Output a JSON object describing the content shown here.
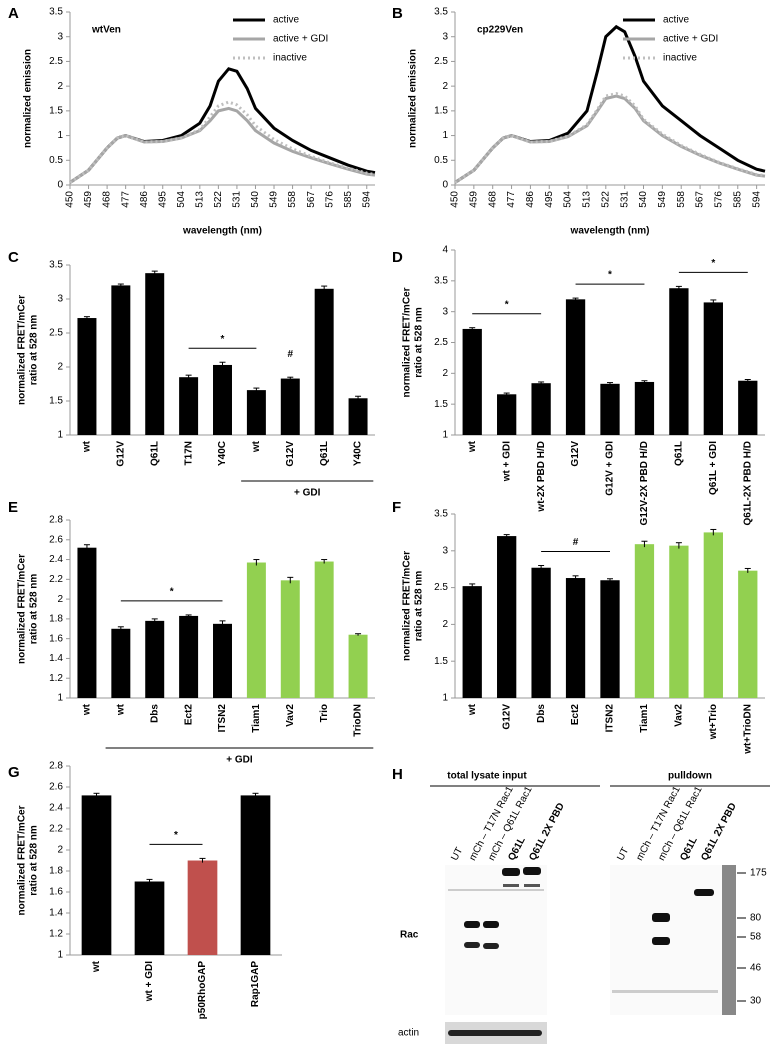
{
  "chart_data": [
    {
      "type": "line",
      "label": "A",
      "title": "wtVen",
      "xlabel": "wavelength (nm)",
      "ylabel": "normalized emission",
      "legend": "upper right",
      "x": [
        450,
        459,
        468,
        473,
        477,
        486,
        495,
        504,
        513,
        518,
        522,
        527,
        531,
        536,
        540,
        549,
        558,
        567,
        576,
        585,
        594,
        598
      ],
      "xlim": [
        450,
        598
      ],
      "xticks": [
        450,
        459,
        468,
        477,
        486,
        495,
        504,
        513,
        522,
        531,
        540,
        549,
        558,
        567,
        576,
        585,
        594
      ],
      "ylim": [
        0,
        3.5
      ],
      "yticks": [
        0,
        0.5,
        1,
        1.5,
        2,
        2.5,
        3,
        3.5
      ],
      "series": [
        {
          "name": "active",
          "color": "#000000",
          "style": "solid",
          "values": [
            0.05,
            0.3,
            0.75,
            0.95,
            1.0,
            0.88,
            0.9,
            1.0,
            1.25,
            1.6,
            2.1,
            2.35,
            2.3,
            1.95,
            1.55,
            1.15,
            0.9,
            0.7,
            0.55,
            0.4,
            0.28,
            0.25
          ]
        },
        {
          "name": "active + GDI",
          "color": "#a6a6a6",
          "style": "solid",
          "values": [
            0.05,
            0.3,
            0.75,
            0.95,
            1.0,
            0.87,
            0.88,
            0.95,
            1.1,
            1.3,
            1.5,
            1.55,
            1.5,
            1.3,
            1.1,
            0.85,
            0.68,
            0.55,
            0.43,
            0.32,
            0.22,
            0.2
          ]
        },
        {
          "name": "inactive",
          "color": "#bfbfbf",
          "style": "dotted",
          "values": [
            0.05,
            0.3,
            0.75,
            0.95,
            1.0,
            0.87,
            0.88,
            0.95,
            1.12,
            1.38,
            1.6,
            1.68,
            1.62,
            1.42,
            1.2,
            0.92,
            0.73,
            0.58,
            0.45,
            0.34,
            0.24,
            0.21
          ]
        }
      ]
    },
    {
      "type": "line",
      "label": "B",
      "title": "cp229Ven",
      "xlabel": "wavelength (nm)",
      "ylabel": "normalized emission",
      "legend": "upper right",
      "x": [
        450,
        459,
        468,
        473,
        477,
        486,
        495,
        504,
        513,
        518,
        522,
        527,
        531,
        536,
        540,
        549,
        558,
        567,
        576,
        585,
        594,
        598
      ],
      "xlim": [
        450,
        598
      ],
      "xticks": [
        450,
        459,
        468,
        477,
        486,
        495,
        504,
        513,
        522,
        531,
        540,
        549,
        558,
        567,
        576,
        585,
        594
      ],
      "ylim": [
        0,
        3.5
      ],
      "yticks": [
        0,
        0.5,
        1,
        1.5,
        2,
        2.5,
        3,
        3.5
      ],
      "series": [
        {
          "name": "active",
          "color": "#000000",
          "style": "solid",
          "values": [
            0.05,
            0.3,
            0.75,
            0.95,
            1.0,
            0.88,
            0.9,
            1.05,
            1.5,
            2.3,
            3.0,
            3.2,
            3.1,
            2.6,
            2.1,
            1.6,
            1.3,
            1.0,
            0.75,
            0.5,
            0.32,
            0.28
          ]
        },
        {
          "name": "active + GDI",
          "color": "#a6a6a6",
          "style": "solid",
          "values": [
            0.05,
            0.3,
            0.75,
            0.95,
            1.0,
            0.87,
            0.88,
            0.98,
            1.2,
            1.5,
            1.75,
            1.8,
            1.75,
            1.55,
            1.3,
            1.0,
            0.78,
            0.6,
            0.45,
            0.32,
            0.2,
            0.18
          ]
        },
        {
          "name": "inactive",
          "color": "#bfbfbf",
          "style": "dotted",
          "values": [
            0.05,
            0.3,
            0.75,
            0.95,
            1.0,
            0.87,
            0.88,
            0.99,
            1.22,
            1.53,
            1.8,
            1.85,
            1.8,
            1.6,
            1.33,
            1.03,
            0.8,
            0.62,
            0.46,
            0.33,
            0.21,
            0.19
          ]
        }
      ]
    },
    {
      "type": "bar",
      "label": "C",
      "ylabel": [
        "normalized FRET/mCer",
        "ratio at 528 nm"
      ],
      "categories": [
        "wt",
        "G12V",
        "Q61L",
        "T17N",
        "Y40C",
        "wt",
        "G12V",
        "Q61L",
        "Y40C"
      ],
      "values": [
        2.72,
        3.2,
        3.38,
        1.85,
        2.03,
        1.66,
        1.83,
        3.15,
        1.54
      ],
      "errors": [
        0.02,
        0.02,
        0.03,
        0.03,
        0.04,
        0.03,
        0.02,
        0.04,
        0.03
      ],
      "colors": [
        "#000000",
        "#000000",
        "#000000",
        "#000000",
        "#000000",
        "#000000",
        "#000000",
        "#000000",
        "#000000"
      ],
      "ylim": [
        1,
        3.5
      ],
      "yticks": [
        1,
        1.5,
        2,
        2.5,
        3,
        3.5
      ],
      "annotations": [
        {
          "text": "*",
          "span": [
            3,
            5
          ]
        },
        {
          "text": "#",
          "span": [
            6,
            6
          ]
        }
      ],
      "groups": [
        {
          "label": "+ GDI",
          "span": [
            5,
            8
          ]
        }
      ]
    },
    {
      "type": "bar",
      "label": "D",
      "ylabel": [
        "normalized FRET/mCer",
        "ratio at 528 nm"
      ],
      "categories": [
        "wt",
        "wt + GDI",
        "wt-2X PBD H/D",
        "G12V",
        "G12V + GDI",
        "G12V-2X PBD H/D",
        "Q61L",
        "Q61L + GDI",
        "Q61L-2X PBD H/D"
      ],
      "values": [
        2.72,
        1.66,
        1.84,
        3.2,
        1.83,
        1.86,
        3.38,
        3.15,
        1.88
      ],
      "errors": [
        0.02,
        0.02,
        0.02,
        0.02,
        0.02,
        0.02,
        0.03,
        0.04,
        0.02
      ],
      "colors": [
        "#000000",
        "#000000",
        "#000000",
        "#000000",
        "#000000",
        "#000000",
        "#000000",
        "#000000",
        "#000000"
      ],
      "ylim": [
        1,
        4
      ],
      "yticks": [
        1,
        1.5,
        2,
        2.5,
        3,
        3.5,
        4
      ],
      "annotations": [
        {
          "text": "*",
          "span": [
            0,
            2
          ]
        },
        {
          "text": "*",
          "span": [
            3,
            5
          ]
        },
        {
          "text": "*",
          "span": [
            6,
            8
          ]
        }
      ]
    },
    {
      "type": "bar",
      "label": "E",
      "ylabel": [
        "normalized FRET/mCer",
        "ratio at 528 nm"
      ],
      "categories": [
        "wt",
        "wt",
        "Dbs",
        "Ect2",
        "ITSN2",
        "Tiam1",
        "Vav2",
        "Trio",
        "TrioDN"
      ],
      "values": [
        2.52,
        1.7,
        1.78,
        1.83,
        1.75,
        2.37,
        2.19,
        2.38,
        1.64
      ],
      "errors": [
        0.03,
        0.02,
        0.02,
        0.01,
        0.03,
        0.03,
        0.03,
        0.02,
        0.01
      ],
      "colors": [
        "#000000",
        "#000000",
        "#000000",
        "#000000",
        "#000000",
        "#92d050",
        "#92d050",
        "#92d050",
        "#92d050"
      ],
      "ylim": [
        1,
        2.8
      ],
      "yticks": [
        1,
        1.2,
        1.4,
        1.6,
        1.8,
        2,
        2.2,
        2.4,
        2.6,
        2.8
      ],
      "annotations": [
        {
          "text": "*",
          "span": [
            1,
            4
          ]
        }
      ],
      "groups": [
        {
          "label": "+ GDI",
          "span": [
            1,
            8
          ]
        }
      ]
    },
    {
      "type": "bar",
      "label": "F",
      "ylabel": [
        "normalized FRET/mCer",
        "ratio at 528 nm"
      ],
      "categories": [
        "wt",
        "G12V",
        "Dbs",
        "Ect2",
        "ITSN2",
        "Tiam1",
        "Vav2",
        "wt+Trio",
        "wt+TrioDN"
      ],
      "values": [
        2.52,
        3.2,
        2.77,
        2.63,
        2.6,
        3.09,
        3.07,
        3.25,
        2.73
      ],
      "errors": [
        0.03,
        0.02,
        0.03,
        0.03,
        0.02,
        0.04,
        0.04,
        0.04,
        0.03
      ],
      "colors": [
        "#000000",
        "#000000",
        "#000000",
        "#000000",
        "#000000",
        "#92d050",
        "#92d050",
        "#92d050",
        "#92d050"
      ],
      "ylim": [
        1,
        3.5
      ],
      "yticks": [
        1,
        1.5,
        2,
        2.5,
        3,
        3.5
      ],
      "annotations": [
        {
          "text": "#",
          "span": [
            2,
            4
          ]
        }
      ]
    },
    {
      "type": "bar",
      "label": "G",
      "ylabel": [
        "normalized FRET/mCer",
        "ratio at 528 nm"
      ],
      "categories": [
        "wt",
        "wt + GDI",
        "p50RhoGAP",
        "Rap1GAP"
      ],
      "values": [
        2.52,
        1.7,
        1.9,
        2.52
      ],
      "errors": [
        0.02,
        0.02,
        0.02,
        0.02
      ],
      "colors": [
        "#000000",
        "#000000",
        "#c0504d",
        "#000000"
      ],
      "ylim": [
        1,
        2.8
      ],
      "yticks": [
        1,
        1.2,
        1.4,
        1.6,
        1.8,
        2,
        2.2,
        2.4,
        2.6,
        2.8
      ],
      "annotations": [
        {
          "text": "*",
          "span": [
            1,
            2
          ]
        }
      ]
    }
  ],
  "blot": {
    "label": "H",
    "input_header": "total lysate input",
    "pulldown_header": "pulldown",
    "input_lanes": [
      "UT",
      "mCh – T17N Rac1",
      "mCh – Q61L Rac1",
      "Q61L",
      "Q61L 2X PBD"
    ],
    "pulldown_lanes": [
      "UT",
      "mCh – T17N Rac1",
      "mCh – Q61L Rac1",
      "Q61L",
      "Q61L 2X PBD"
    ],
    "rows": [
      "Rac",
      "actin"
    ],
    "markers": [
      "175",
      "80",
      "58",
      "46",
      "30"
    ]
  }
}
